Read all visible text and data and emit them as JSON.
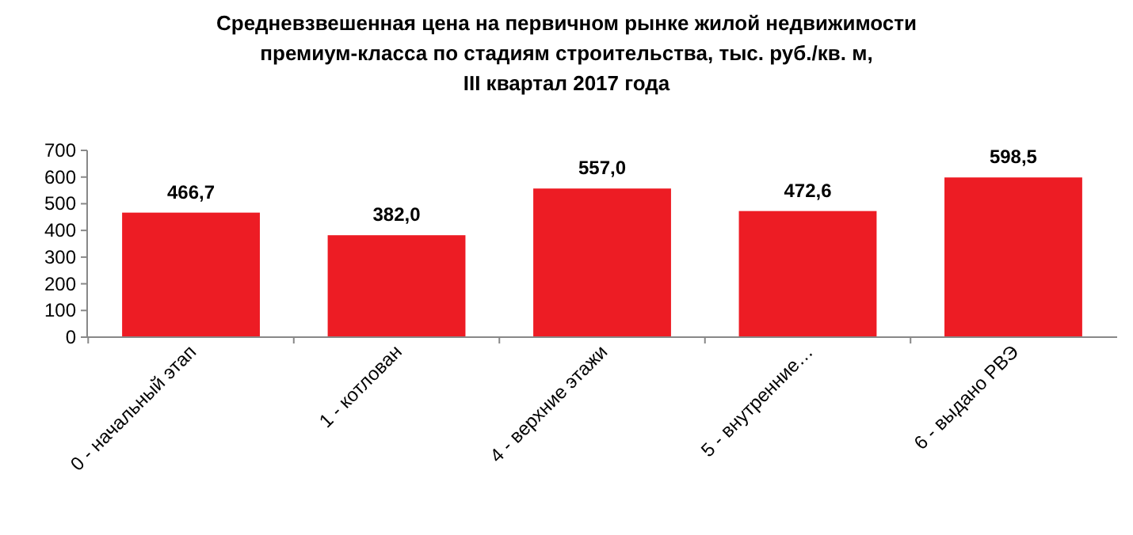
{
  "chart_data": {
    "type": "bar",
    "title": "Средневзвешенная цена на первичном рынке жилой недвижимости премиум-класса по стадиям строительства, тыс. руб./кв. м, III квартал 2017 года",
    "categories": [
      "0 - начальный этап",
      "1 - котлован",
      "4 - верхние этажи",
      "5 - внутренние…",
      "6 - выдано РВЭ"
    ],
    "values": [
      466.7,
      382.0,
      557.0,
      472.6,
      598.5
    ],
    "value_labels": [
      "466,7",
      "382,0",
      "557,0",
      "472,6",
      "598,5"
    ],
    "color": "#ed1c24",
    "ylim": [
      0,
      700
    ],
    "yticks": [
      0,
      100,
      200,
      300,
      400,
      500,
      600,
      700
    ],
    "grid": false
  }
}
